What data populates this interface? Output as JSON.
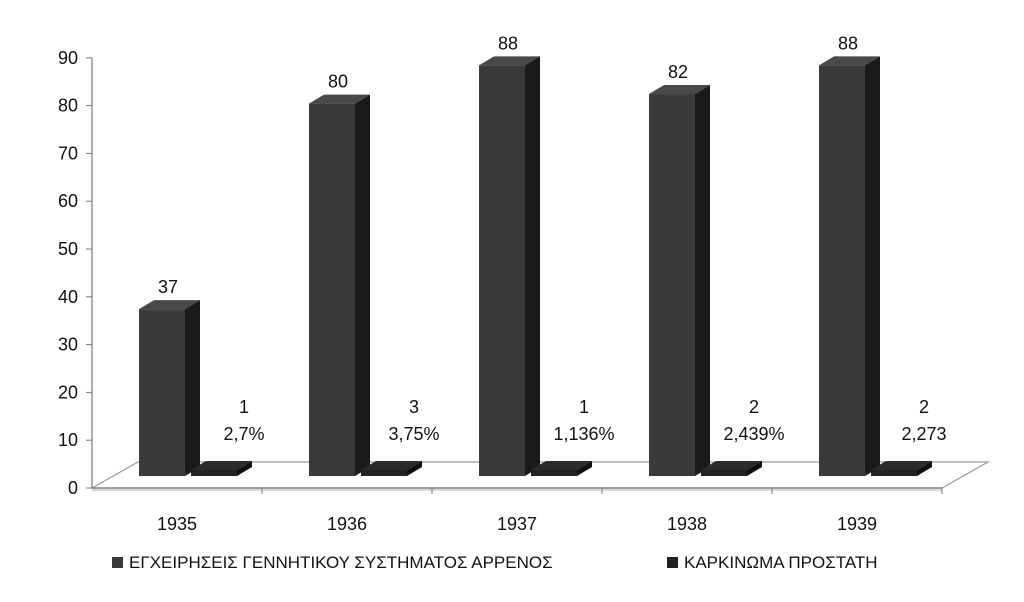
{
  "chart_data": {
    "type": "bar",
    "title": "",
    "xlabel": "",
    "ylabel": "",
    "categories": [
      "1935",
      "1936",
      "1937",
      "1938",
      "1939"
    ],
    "ylim": [
      0,
      90
    ],
    "yticks": [
      "0",
      "10",
      "20",
      "30",
      "40",
      "50",
      "60",
      "70",
      "80",
      "90"
    ],
    "three_d": true,
    "grid": false,
    "legend_position": "bottom",
    "series": [
      {
        "name": "ΕΓΧΕΙΡΗΣΕΙΣ ΓΕΝΝΗΤΙΚΟΥ ΣΥΣΤΗΜΑΤΟΣ ΑΡΡΕΝΟΣ",
        "values": [
          37,
          80,
          88,
          82,
          88
        ],
        "labels": [
          [
            "37"
          ],
          [
            "80"
          ],
          [
            "88"
          ],
          [
            "82"
          ],
          [
            "88"
          ]
        ],
        "color": "#3a3a3a"
      },
      {
        "name": "ΚΑΡΚΙΝΩΜΑ ΠΡΟΣΤΑΤΗ",
        "values": [
          1,
          3,
          1,
          2,
          2
        ],
        "labels": [
          [
            "1",
            "2,7%"
          ],
          [
            "3",
            "3,75%"
          ],
          [
            "1",
            "1,136%"
          ],
          [
            "2",
            "2,439%"
          ],
          [
            "2",
            "2,273"
          ]
        ],
        "color": "#222222"
      }
    ]
  }
}
